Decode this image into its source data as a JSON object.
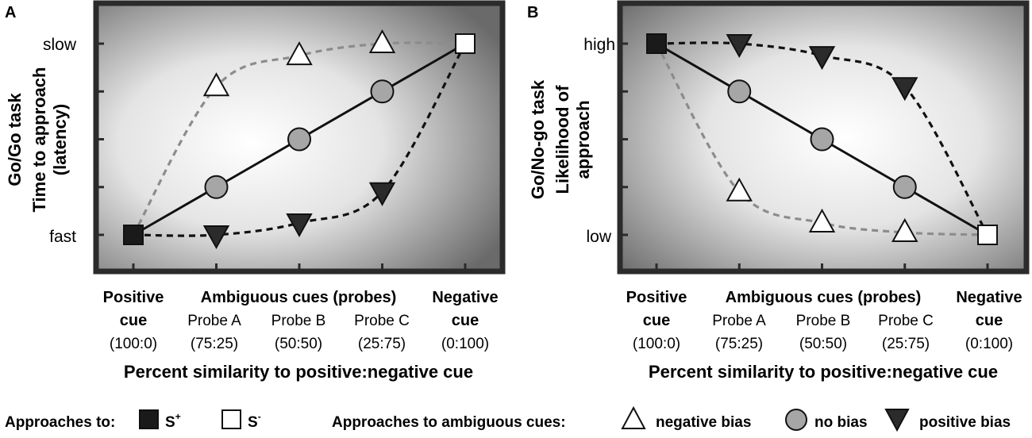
{
  "chart_data": [
    {
      "panel": "A",
      "type": "line",
      "title": "",
      "ylabel_task": "Go/Go task",
      "ylabel_measure": [
        "Time to approach",
        "(latency)"
      ],
      "y_ticks": [
        "slow",
        "fast"
      ],
      "x_heading_positive": [
        "Positive",
        "cue"
      ],
      "x_heading_ambiguous": "Ambiguous cues (probes)",
      "x_heading_negative": [
        "Negative",
        "cue"
      ],
      "x_categories": [
        "",
        "Probe A",
        "Probe B",
        "Probe C",
        ""
      ],
      "x_ratios": [
        "(100:0)",
        "(75:25)",
        "(50:50)",
        "(25:75)",
        "(0:100)"
      ],
      "xlabel": "Percent similarity to positive:negative cue",
      "x": [
        0,
        25,
        50,
        75,
        100
      ],
      "ylim": [
        0,
        4
      ],
      "series": [
        {
          "name": "negative bias",
          "marker": "triangle-up",
          "line": "dashed-gray",
          "values": [
            0,
            3.1,
            3.75,
            4.0,
            4
          ]
        },
        {
          "name": "no bias",
          "marker": "circle",
          "line": "solid-black",
          "values": [
            0,
            1,
            2,
            3,
            4
          ]
        },
        {
          "name": "positive bias",
          "marker": "triangle-down",
          "line": "dashed-black",
          "values": [
            0,
            0,
            0.25,
            0.9,
            4
          ]
        }
      ],
      "endpoints": [
        {
          "name": "S+",
          "marker": "square-filled",
          "x": 0,
          "y": 0
        },
        {
          "name": "S-",
          "marker": "square-open",
          "x": 100,
          "y": 4
        }
      ]
    },
    {
      "panel": "B",
      "type": "line",
      "title": "",
      "ylabel_task": "Go/No-go task",
      "ylabel_measure": [
        "Likelihood of",
        "approach"
      ],
      "y_ticks": [
        "high",
        "low"
      ],
      "x_heading_positive": [
        "Positive",
        "cue"
      ],
      "x_heading_ambiguous": "Ambiguous cues (probes)",
      "x_heading_negative": [
        "Negative",
        "cue"
      ],
      "x_categories": [
        "",
        "Probe A",
        "Probe B",
        "Probe C",
        ""
      ],
      "x_ratios": [
        "(100:0)",
        "(75:25)",
        "(50:50)",
        "(25:75)",
        "(0:100)"
      ],
      "xlabel": "Percent similarity to positive:negative cue",
      "x": [
        0,
        25,
        50,
        75,
        100
      ],
      "ylim": [
        0,
        4
      ],
      "series": [
        {
          "name": "negative bias",
          "marker": "triangle-up",
          "line": "dashed-gray",
          "values": [
            4,
            0.9,
            0.25,
            0.05,
            0
          ]
        },
        {
          "name": "no bias",
          "marker": "circle",
          "line": "solid-black",
          "values": [
            4,
            3,
            2,
            1,
            0
          ]
        },
        {
          "name": "positive bias",
          "marker": "triangle-down",
          "line": "dashed-black",
          "values": [
            4,
            4,
            3.75,
            3.1,
            0
          ]
        }
      ],
      "endpoints": [
        {
          "name": "S+",
          "marker": "square-filled",
          "x": 0,
          "y": 4
        },
        {
          "name": "S-",
          "marker": "square-open",
          "x": 100,
          "y": 0
        }
      ]
    }
  ],
  "legend": {
    "approaches_to": "Approaches to:",
    "s_plus": "S",
    "s_plus_sup": "+",
    "s_minus": "S",
    "s_minus_sup": "-",
    "ambiguous_heading": "Approaches to ambiguous cues:",
    "negative_bias": "negative bias",
    "no_bias": "no bias",
    "positive_bias": "positive bias"
  },
  "colors": {
    "frame": "#2b2b2b",
    "circle_fill": "#a6a6a6",
    "triangle_down_fill": "#2b2b2b",
    "gray_dash": "#8c8c8c",
    "black_line": "#111111"
  }
}
